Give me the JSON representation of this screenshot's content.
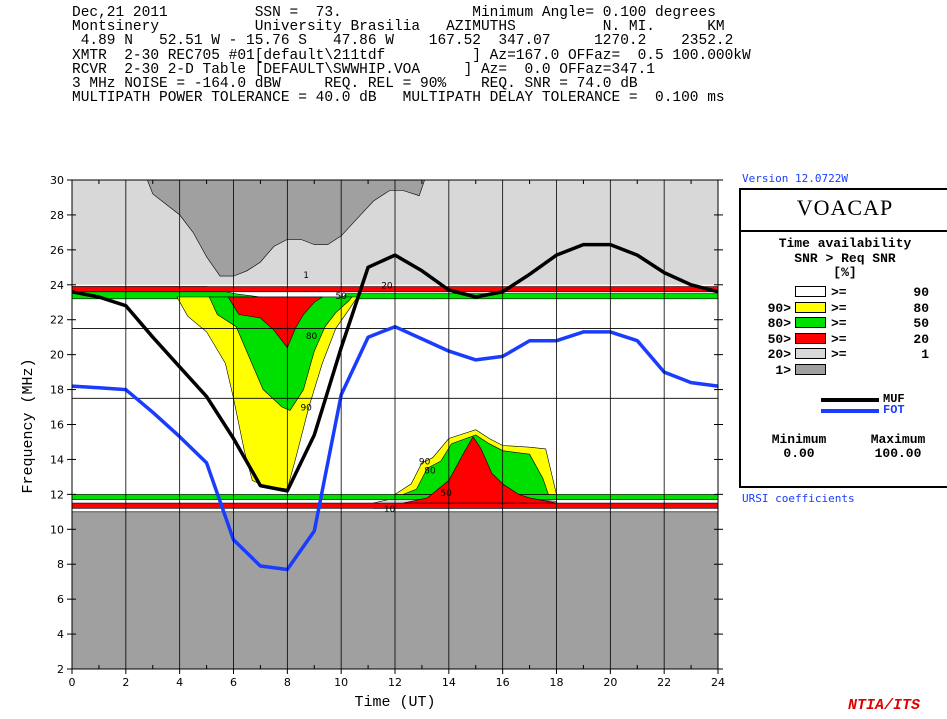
{
  "header_lines": [
    "Dec,21 2011          SSN =  73.               Minimum Angle= 0.100 degrees",
    "Montsinery           University Brasilia   AZIMUTHS          N. MI.      KM",
    " 4.89 N   52.51 W - 15.76 S   47.86 W    167.52  347.07     1270.2    2352.2",
    "XMTR  2-30 REC705 #01[default\\211tdf          ] Az=167.0 OFFaz=  0.5 100.000kW",
    "RCVR  2-30 2-D Table [DEFAULT\\SWWHIP.VOA     ] Az=  0.0 OFFaz=347.1",
    "3 MHz NOISE = -164.0 dBW     REQ. REL = 90%    REQ. SNR = 74.0 dB",
    "MULTIPATH POWER TOLERANCE = 40.0 dB   MULTIPATH DELAY TOLERANCE =  0.100 ms"
  ],
  "version_label": "Version 12.0722W",
  "legend": {
    "title": "VOACAP",
    "line1": "Time availability",
    "line2": "SNR > Req SNR",
    "line3": "[%]",
    "bands": [
      {
        "low": "",
        "high": "90",
        "op": ">=",
        "color": "#ffffff"
      },
      {
        "low": "90>",
        "high": "80",
        "op": ">=",
        "color": "#ffff00"
      },
      {
        "low": "80>",
        "high": "50",
        "op": ">=",
        "color": "#00e000"
      },
      {
        "low": "50>",
        "high": "20",
        "op": ">=",
        "color": "#ff0000"
      },
      {
        "low": "20>",
        "high": "1",
        "op": ">=",
        "color": "#d8d8d8"
      },
      {
        "low": "1>",
        "high": "",
        "op": "",
        "color": "#a0a0a0"
      }
    ],
    "muf_label": "MUF",
    "fot_label": "FOT",
    "muf_color": "#000000",
    "fot_color": "#1a3cff",
    "minimum_label": "Minimum",
    "maximum_label": "Maximum",
    "minimum_value": "0.00",
    "maximum_value": "100.00"
  },
  "ursi_label": "URSI coefficients",
  "footer_label": "NTIA/ITS",
  "chart_data": {
    "type": "area",
    "xlabel": "Time (UT)",
    "ylabel": "Frequency (MHz)",
    "xlim": [
      0,
      24
    ],
    "ylim": [
      2,
      30
    ],
    "xticks": [
      0,
      2,
      4,
      6,
      8,
      10,
      12,
      14,
      16,
      18,
      20,
      22,
      24
    ],
    "yticks": [
      2,
      4,
      6,
      8,
      10,
      12,
      14,
      16,
      18,
      20,
      22,
      24,
      26,
      28,
      30
    ],
    "reference_lines_mhz": [
      21.5,
      17.5
    ],
    "contour_labels": [
      {
        "text": "1",
        "x": 8.7,
        "y": 24.4
      },
      {
        "text": "50",
        "x": 10.0,
        "y": 23.2
      },
      {
        "text": "20",
        "x": 11.7,
        "y": 23.8
      },
      {
        "text": "80",
        "x": 8.9,
        "y": 20.9
      },
      {
        "text": "90",
        "x": 8.7,
        "y": 16.8
      },
      {
        "text": "90",
        "x": 13.1,
        "y": 13.7
      },
      {
        "text": "80",
        "x": 13.3,
        "y": 13.2
      },
      {
        "text": "50",
        "x": 13.9,
        "y": 11.9
      },
      {
        "text": "10",
        "x": 11.8,
        "y": 11.0
      }
    ],
    "regions": [
      {
        "band": "1>",
        "color": "#a0a0a0",
        "points": [
          [
            0,
            2
          ],
          [
            24,
            2
          ],
          [
            24,
            11.0
          ],
          [
            0,
            11.0
          ]
        ]
      },
      {
        "band": "1>",
        "color": "#a0a0a0",
        "points": [
          [
            2.8,
            30
          ],
          [
            3.0,
            29.2
          ],
          [
            3.5,
            28.6
          ],
          [
            4.0,
            28.0
          ],
          [
            4.5,
            27.0
          ],
          [
            5.0,
            25.6
          ],
          [
            5.5,
            24.5
          ],
          [
            6.0,
            24.5
          ],
          [
            6.5,
            24.8
          ],
          [
            7.0,
            25.3
          ],
          [
            7.5,
            26.2
          ],
          [
            8.0,
            26.6
          ],
          [
            8.5,
            26.6
          ],
          [
            9.0,
            26.3
          ],
          [
            9.5,
            26.3
          ],
          [
            10.0,
            26.8
          ],
          [
            10.6,
            27.8
          ],
          [
            11.2,
            28.8
          ],
          [
            11.8,
            29.4
          ],
          [
            12.3,
            29.4
          ],
          [
            12.9,
            29.1
          ],
          [
            13.1,
            30
          ]
        ]
      },
      {
        "band": "20>",
        "color": "#d8d8d8",
        "points": [
          [
            11.2,
            11.5
          ],
          [
            12.0,
            11.8
          ],
          [
            13.0,
            12.0
          ],
          [
            14.0,
            12.0
          ],
          [
            15.0,
            12.0
          ],
          [
            16.0,
            11.8
          ],
          [
            17.0,
            11.7
          ],
          [
            18.0,
            11.6
          ],
          [
            18.0,
            11.2
          ],
          [
            11.2,
            11.2
          ]
        ]
      },
      {
        "band": "80>",
        "color": "#00e000",
        "points": [
          [
            0,
            23.9
          ],
          [
            5.0,
            23.9
          ],
          [
            6.0,
            23.5
          ],
          [
            7.0,
            23.3
          ],
          [
            8.0,
            22.8
          ],
          [
            9.0,
            23.1
          ],
          [
            10.0,
            23.2
          ],
          [
            10.2,
            23.5
          ],
          [
            24,
            23.5
          ],
          [
            24,
            23.2
          ],
          [
            0,
            23.2
          ]
        ]
      },
      {
        "band": "80>",
        "color": "#00e000",
        "points": [
          [
            0,
            12.0
          ],
          [
            24,
            12.0
          ],
          [
            24,
            11.7
          ],
          [
            0,
            11.7
          ]
        ]
      },
      {
        "band": "50>",
        "color": "#ff0000",
        "points": [
          [
            0,
            11.5
          ],
          [
            24,
            11.5
          ],
          [
            24,
            11.2
          ],
          [
            0,
            11.2
          ]
        ]
      },
      {
        "band": "50>",
        "color": "#ff0000",
        "points": [
          [
            0,
            23.9
          ],
          [
            24,
            23.9
          ],
          [
            24,
            23.6
          ],
          [
            0,
            23.6
          ]
        ]
      },
      {
        "band": "90>",
        "color": "#ffff00",
        "points": [
          [
            3.9,
            23.3
          ],
          [
            4.3,
            22.2
          ],
          [
            5.0,
            21.3
          ],
          [
            5.7,
            19.5
          ],
          [
            6.0,
            17.5
          ],
          [
            6.4,
            14.5
          ],
          [
            6.7,
            12.8
          ],
          [
            7.1,
            12.5
          ],
          [
            8.0,
            12.3
          ],
          [
            8.3,
            14.0
          ],
          [
            8.8,
            17.0
          ],
          [
            9.3,
            19.5
          ],
          [
            9.8,
            21.5
          ],
          [
            10.3,
            22.6
          ],
          [
            10.6,
            23.3
          ]
        ]
      },
      {
        "band": "80>",
        "color": "#00e000",
        "points": [
          [
            5.1,
            23.3
          ],
          [
            5.4,
            22.3
          ],
          [
            6.1,
            21.6
          ],
          [
            6.6,
            19.8
          ],
          [
            7.1,
            18.0
          ],
          [
            7.8,
            17.0
          ],
          [
            8.1,
            16.8
          ],
          [
            8.6,
            18.0
          ],
          [
            9.0,
            20.2
          ],
          [
            9.4,
            21.6
          ],
          [
            9.8,
            22.4
          ],
          [
            10.3,
            23.1
          ],
          [
            10.4,
            23.3
          ]
        ]
      },
      {
        "band": "50>",
        "color": "#ff0000",
        "points": [
          [
            5.8,
            23.3
          ],
          [
            6.2,
            22.3
          ],
          [
            7.0,
            22.1
          ],
          [
            7.5,
            21.4
          ],
          [
            8.0,
            20.4
          ],
          [
            8.3,
            21.5
          ],
          [
            8.6,
            22.3
          ],
          [
            9.0,
            23.0
          ],
          [
            9.3,
            23.3
          ]
        ]
      },
      {
        "band": "90>",
        "color": "#ffff00",
        "points": [
          [
            12.0,
            12.0
          ],
          [
            12.6,
            12.6
          ],
          [
            13.0,
            13.8
          ],
          [
            13.4,
            14.1
          ],
          [
            14.0,
            15.2
          ],
          [
            15.0,
            15.7
          ],
          [
            15.5,
            15.2
          ],
          [
            16.0,
            14.8
          ],
          [
            17.0,
            14.7
          ],
          [
            17.6,
            14.6
          ],
          [
            18.0,
            12.0
          ]
        ]
      },
      {
        "band": "80>",
        "color": "#00e000",
        "points": [
          [
            12.3,
            12.0
          ],
          [
            12.8,
            12.3
          ],
          [
            13.2,
            13.5
          ],
          [
            13.7,
            13.9
          ],
          [
            14.1,
            14.9
          ],
          [
            15.0,
            15.4
          ],
          [
            15.5,
            14.9
          ],
          [
            16.0,
            14.5
          ],
          [
            17.0,
            14.3
          ],
          [
            17.5,
            12.9
          ],
          [
            17.7,
            12.0
          ]
        ]
      },
      {
        "band": "50>",
        "color": "#ff0000",
        "points": [
          [
            12.3,
            11.5
          ],
          [
            13.2,
            11.8
          ],
          [
            14.0,
            12.8
          ],
          [
            14.6,
            14.5
          ],
          [
            14.9,
            15.3
          ],
          [
            15.2,
            14.6
          ],
          [
            15.6,
            13.2
          ],
          [
            16.0,
            12.6
          ],
          [
            16.6,
            12.0
          ],
          [
            17.0,
            11.8
          ],
          [
            18.0,
            11.5
          ]
        ]
      }
    ],
    "series": [
      {
        "name": "MUF",
        "color": "#000000",
        "x": [
          0,
          1,
          2,
          3,
          4,
          5,
          6,
          7,
          8,
          9,
          10,
          11,
          12,
          13,
          14,
          15,
          16,
          17,
          18,
          19,
          20,
          21,
          22,
          23,
          24
        ],
        "y": [
          23.6,
          23.3,
          22.8,
          21.0,
          19.3,
          17.6,
          15.2,
          12.5,
          12.2,
          15.4,
          20.4,
          25.0,
          25.7,
          24.8,
          23.7,
          23.3,
          23.6,
          24.6,
          25.7,
          26.3,
          26.3,
          25.7,
          24.7,
          24.0,
          23.6
        ]
      },
      {
        "name": "FOT",
        "color": "#1a3cff",
        "x": [
          0,
          1,
          2,
          3,
          4,
          5,
          6,
          7,
          8,
          9,
          10,
          11,
          12,
          13,
          14,
          15,
          16,
          17,
          18,
          19,
          20,
          21,
          22,
          23,
          24
        ],
        "y": [
          18.2,
          18.1,
          18.0,
          16.7,
          15.3,
          13.8,
          9.4,
          7.9,
          7.7,
          9.9,
          17.7,
          21.0,
          21.6,
          20.9,
          20.2,
          19.7,
          19.9,
          20.8,
          20.8,
          21.3,
          21.3,
          20.8,
          19.0,
          18.4,
          18.2
        ]
      }
    ]
  }
}
